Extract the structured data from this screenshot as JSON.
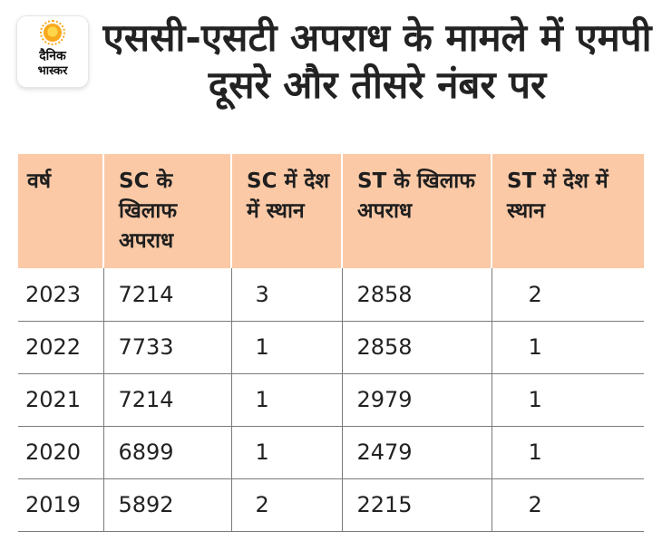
{
  "logo": {
    "line1": "दैनिक",
    "line2": "भास्कर"
  },
  "headline": "एससी-एसटी अपराध के मामले में एमपी दूसरे और तीसरे नंबर पर",
  "table": {
    "headers": [
      "वर्ष",
      "SC के खिलाफ अपराध",
      "SC में देश में स्थान",
      "ST के खिलाफ अपराध",
      "ST में देश में स्थान"
    ],
    "rows": [
      [
        "2023",
        "7214",
        "3",
        "2858",
        "2"
      ],
      [
        "2022",
        "7733",
        "1",
        "2858",
        "1"
      ],
      [
        "2021",
        "7214",
        "1",
        "2979",
        "1"
      ],
      [
        "2020",
        "6899",
        "1",
        "2479",
        "1"
      ],
      [
        "2019",
        "5892",
        "2",
        "2215",
        "2"
      ]
    ]
  },
  "colors": {
    "header_bg": "#fbc9a6",
    "logo_accent": "#f7a81b"
  }
}
